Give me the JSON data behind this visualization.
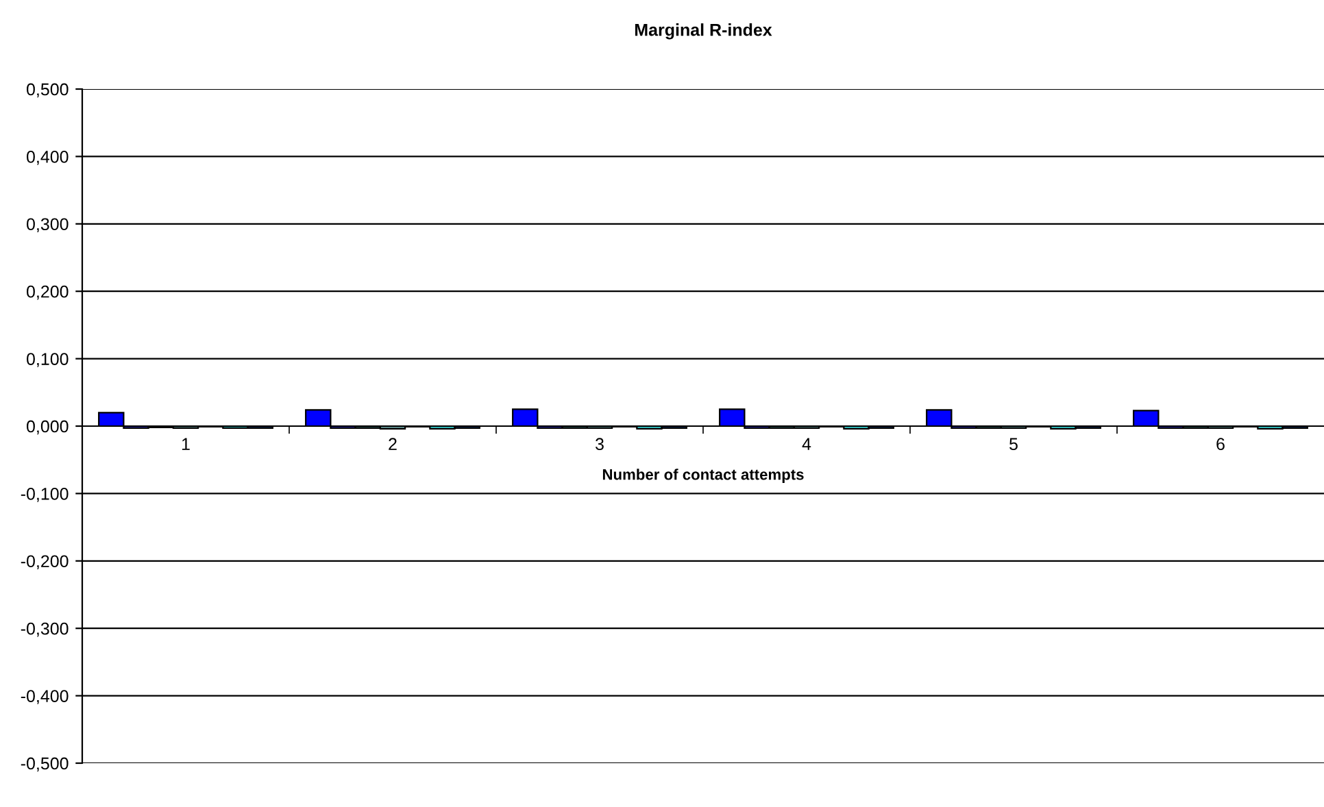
{
  "chart_data": {
    "type": "bar",
    "title": "Marginal R-index",
    "xlabel": "Number of contact attempts",
    "categories": [
      "1",
      "2",
      "3",
      "4",
      "5",
      "6"
    ],
    "series": [
      {
        "color": "#0000ff",
        "values": [
          0.02,
          0.024,
          0.025,
          0.025,
          0.024,
          0.023
        ]
      },
      {
        "color": "#3333cc",
        "values": [
          -0.003,
          -0.003,
          -0.003,
          -0.003,
          -0.003,
          -0.003
        ]
      },
      {
        "color": "#336666",
        "values": [
          -0.002,
          -0.003,
          -0.003,
          -0.003,
          -0.003,
          -0.003
        ]
      },
      {
        "color": "#669999",
        "values": [
          -0.003,
          -0.004,
          -0.003,
          -0.003,
          -0.003,
          -0.003
        ]
      },
      {
        "color": "#000000",
        "values": [
          -0.001,
          -0.001,
          -0.001,
          -0.001,
          -0.001,
          -0.001
        ]
      },
      {
        "color": "#33cccc",
        "values": [
          -0.003,
          -0.004,
          -0.004,
          -0.004,
          -0.004,
          -0.004
        ]
      },
      {
        "color": "#003366",
        "values": [
          -0.003,
          -0.003,
          -0.003,
          -0.003,
          -0.003,
          -0.003
        ]
      }
    ],
    "ylim": [
      -0.5,
      0.5
    ],
    "yticks": [
      {
        "value": -0.5,
        "label": "-0,500"
      },
      {
        "value": -0.4,
        "label": "-0,400"
      },
      {
        "value": -0.3,
        "label": "-0,300"
      },
      {
        "value": -0.2,
        "label": "-0,200"
      },
      {
        "value": -0.1,
        "label": "-0,100"
      },
      {
        "value": 0,
        "label": "0,000"
      },
      {
        "value": 0.1,
        "label": "0,100"
      },
      {
        "value": 0.2,
        "label": "0,200"
      },
      {
        "value": 0.3,
        "label": "0,300"
      },
      {
        "value": 0.4,
        "label": "0,400"
      },
      {
        "value": 0.5,
        "label": "0,500"
      }
    ],
    "grid": "y",
    "legend": false
  }
}
